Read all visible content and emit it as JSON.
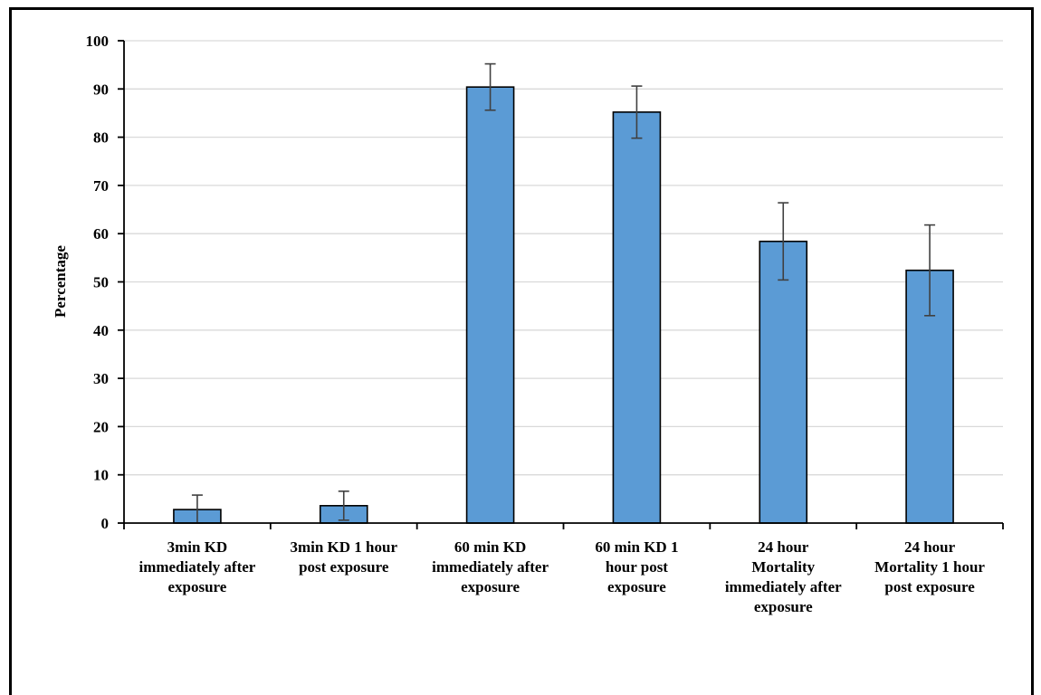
{
  "chart_data": {
    "type": "bar",
    "title": "",
    "xlabel": "",
    "ylabel": "Percentage",
    "ylim": [
      0,
      100
    ],
    "yticks": [
      0,
      10,
      20,
      30,
      40,
      50,
      60,
      70,
      80,
      90,
      100
    ],
    "grid": true,
    "legend": "none",
    "bar_color": "#5B9BD5",
    "categories": [
      [
        "3min KD",
        "immediately after",
        "exposure"
      ],
      [
        "3min KD 1 hour",
        "post exposure"
      ],
      [
        "60 min KD",
        "immediately after",
        "exposure"
      ],
      [
        "60 min KD 1",
        "hour post",
        "exposure"
      ],
      [
        "24 hour",
        "Mortality",
        "immediately after",
        "exposure"
      ],
      [
        "24 hour",
        "Mortality 1 hour",
        "post exposure"
      ]
    ],
    "series": [
      {
        "values": [
          2.8,
          3.6,
          90.4,
          85.2,
          58.4,
          52.4
        ],
        "error": [
          3.0,
          3.0,
          4.8,
          5.4,
          8.0,
          9.4
        ]
      }
    ]
  }
}
